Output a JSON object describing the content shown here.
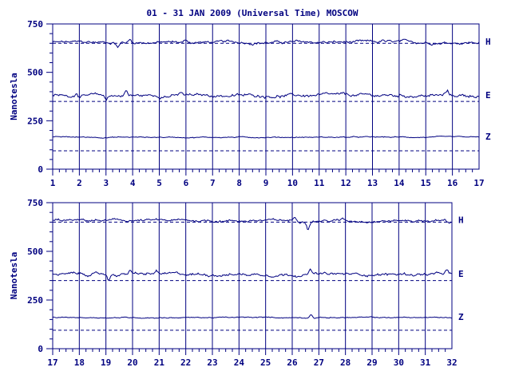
{
  "title": "01 - 31 JAN 2009 (Universal Time) MOSCOW",
  "colors": {
    "ink": "#000080",
    "background": "#ffffff"
  },
  "chart_data": [
    {
      "type": "line",
      "ylabel": "Nanotesla",
      "xlim": [
        1,
        17
      ],
      "ylim": [
        0,
        750
      ],
      "y_ticks": [
        0,
        250,
        500,
        750
      ],
      "x_ticks": [
        1,
        2,
        3,
        4,
        5,
        6,
        7,
        8,
        9,
        10,
        11,
        12,
        13,
        14,
        15,
        16,
        17
      ],
      "grid": "vertical lines at each day",
      "series": [
        {
          "name": "H",
          "baseline": 650,
          "level": 655,
          "noise": 8,
          "features": [
            {
              "x": 3.45,
              "dy": -25
            },
            {
              "x": 3.9,
              "dy": 14
            },
            {
              "x": 6.0,
              "dy": 12
            },
            {
              "x": 13.4,
              "dy": 10
            }
          ]
        },
        {
          "name": "E",
          "baseline": 350,
          "level": 380,
          "noise": 9,
          "features": [
            {
              "x": 1.9,
              "dy": 18
            },
            {
              "x": 3.0,
              "dy": -22
            },
            {
              "x": 3.75,
              "dy": 28
            },
            {
              "x": 5.8,
              "dy": 16
            },
            {
              "x": 15.8,
              "dy": 22
            }
          ]
        },
        {
          "name": "Z",
          "baseline": 95,
          "level": 165,
          "noise": 3,
          "features": []
        }
      ]
    },
    {
      "type": "line",
      "ylabel": "Nanotesla",
      "xlim": [
        17,
        32
      ],
      "ylim": [
        0,
        750
      ],
      "y_ticks": [
        0,
        250,
        500,
        750
      ],
      "x_ticks": [
        17,
        18,
        19,
        20,
        21,
        22,
        23,
        24,
        25,
        26,
        27,
        28,
        29,
        30,
        31,
        32
      ],
      "grid": "vertical lines at each day",
      "series": [
        {
          "name": "H",
          "baseline": 650,
          "level": 658,
          "noise": 7,
          "features": [
            {
              "x": 26.1,
              "dy": 18
            },
            {
              "x": 26.6,
              "dy": -35
            },
            {
              "x": 27.9,
              "dy": 10
            },
            {
              "x": 31.9,
              "dy": -15
            }
          ]
        },
        {
          "name": "E",
          "baseline": 350,
          "level": 382,
          "noise": 8,
          "features": [
            {
              "x": 19.1,
              "dy": -30
            },
            {
              "x": 19.9,
              "dy": 22
            },
            {
              "x": 20.9,
              "dy": 18
            },
            {
              "x": 26.7,
              "dy": 25
            },
            {
              "x": 31.8,
              "dy": 20
            }
          ]
        },
        {
          "name": "Z",
          "baseline": 95,
          "level": 160,
          "noise": 3,
          "features": [
            {
              "x": 26.7,
              "dy": 18
            }
          ]
        }
      ]
    }
  ]
}
